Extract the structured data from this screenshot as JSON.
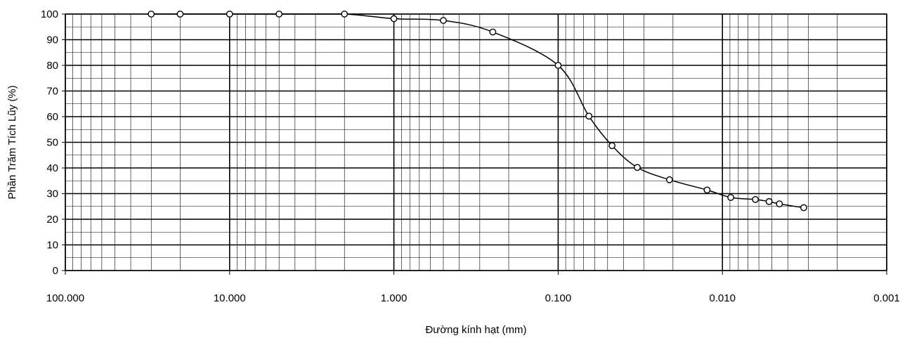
{
  "chart_data": {
    "type": "scatter",
    "title": "",
    "xlabel": "Đường kính hạt (mm)",
    "ylabel": "Phần Trăm Tích Lũy (%)",
    "x_scale": "log",
    "x_reversed": true,
    "xlim": [
      100,
      0.001
    ],
    "ylim": [
      0,
      100
    ],
    "grid": true,
    "x_tick_labels": [
      "100.000",
      "10.000",
      "1.000",
      "0.100",
      "0.010",
      "0.001"
    ],
    "x_tick_values": [
      100,
      10,
      1,
      0.1,
      0.01,
      0.001
    ],
    "y_ticks": [
      0,
      10,
      20,
      30,
      40,
      50,
      60,
      70,
      80,
      90,
      100
    ],
    "series": [
      {
        "line": "smooth",
        "marker": "open-circle",
        "x": [
          30,
          20,
          10,
          5,
          2,
          1,
          0.5,
          0.25,
          0.1,
          0.065,
          0.047,
          0.033,
          0.021,
          0.0124,
          0.0089,
          0.0063,
          0.0052,
          0.0045,
          0.0032
        ],
        "y": [
          100,
          100,
          100,
          100,
          100,
          98.2,
          97.5,
          93,
          80,
          60.2,
          48.7,
          40.2,
          35.4,
          31.4,
          28.5,
          27.7,
          26.9,
          26.0,
          24.5
        ]
      }
    ]
  }
}
